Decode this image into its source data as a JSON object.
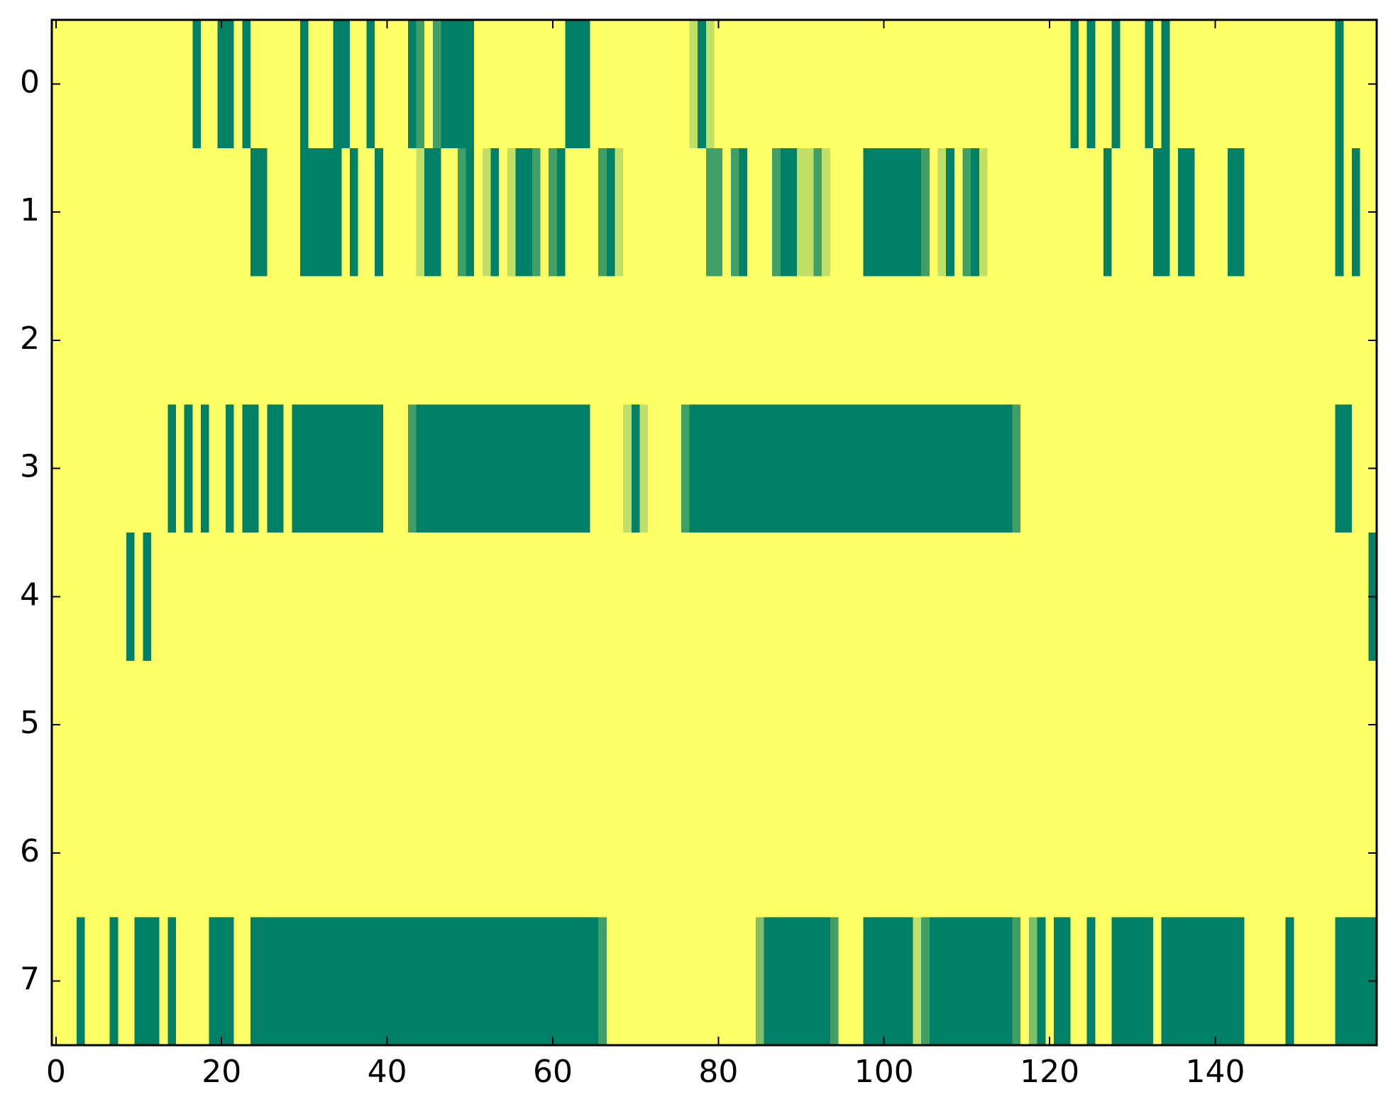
{
  "chart_data": {
    "type": "heatmap",
    "colormap": "summer",
    "xlim": [
      -0.5,
      159.5
    ],
    "ylim": [
      7.5,
      -0.5
    ],
    "xticks": [
      0,
      20,
      40,
      60,
      80,
      100,
      120,
      140
    ],
    "yticks": [
      0,
      1,
      2,
      3,
      4,
      5,
      6,
      7
    ],
    "values": [
      [
        1,
        1,
        1,
        1,
        1,
        1,
        1,
        1,
        1,
        1,
        1,
        1,
        1,
        1,
        1,
        1,
        1,
        0,
        1,
        1,
        0,
        0,
        1,
        0,
        1,
        1,
        1,
        1,
        1,
        1,
        0,
        1,
        1,
        1,
        0,
        0,
        1,
        1,
        0,
        1,
        1,
        1,
        1,
        0,
        0.25,
        1,
        0.25,
        0,
        0,
        0,
        0,
        1,
        1,
        1,
        1,
        1,
        1,
        1,
        1,
        1,
        1,
        1,
        0,
        0,
        0,
        1,
        1,
        1,
        1,
        1,
        1,
        1,
        1,
        1,
        1,
        1,
        1,
        0.75,
        0,
        0.75,
        1,
        1,
        1,
        1,
        1,
        1,
        1,
        1,
        1,
        1,
        1,
        1,
        1,
        1,
        1,
        1,
        1,
        1,
        1,
        1,
        1,
        1,
        1,
        1,
        1,
        1,
        1,
        1,
        1,
        1,
        1,
        1,
        1,
        1,
        1,
        1,
        1,
        1,
        1,
        1,
        1,
        1,
        1,
        0,
        1,
        0,
        1,
        1,
        0,
        1,
        1,
        1,
        0,
        1,
        0,
        1,
        1,
        1,
        1,
        1,
        1,
        1,
        1,
        1,
        1,
        1,
        1,
        1,
        1,
        1,
        1,
        1,
        1,
        1,
        1,
        0,
        1,
        1,
        1,
        1
      ],
      [
        1,
        1,
        1,
        1,
        1,
        1,
        1,
        1,
        1,
        1,
        1,
        1,
        1,
        1,
        1,
        1,
        1,
        1,
        1,
        1,
        1,
        1,
        1,
        1,
        0,
        0,
        1,
        1,
        1,
        1,
        0,
        0,
        0,
        0,
        0,
        1,
        0,
        1,
        1,
        0,
        1,
        1,
        1,
        1,
        0.75,
        0,
        0,
        1,
        1,
        0.25,
        0,
        1,
        0.75,
        0,
        1,
        0.75,
        0,
        0,
        0.25,
        1,
        0.25,
        0,
        1,
        1,
        1,
        1,
        0.25,
        0,
        0.75,
        1,
        1,
        1,
        1,
        1,
        1,
        1,
        1,
        1,
        1,
        0.25,
        0.25,
        1,
        0.25,
        0,
        1,
        1,
        1,
        0.25,
        0,
        0,
        0.75,
        0.75,
        0.25,
        0.75,
        1,
        1,
        1,
        1,
        0,
        0,
        0,
        0,
        0,
        0,
        0,
        0.25,
        1,
        0.75,
        0,
        1,
        0.25,
        0,
        0.75,
        1,
        1,
        1,
        1,
        1,
        1,
        1,
        1,
        1,
        1,
        1,
        1,
        1,
        1,
        0,
        1,
        1,
        1,
        1,
        1,
        0,
        0,
        1,
        0,
        0,
        1,
        1,
        1,
        1,
        0,
        0,
        1,
        1,
        1,
        1,
        1,
        1,
        1,
        1,
        1,
        1,
        1,
        0,
        1,
        0,
        1,
        1
      ],
      [
        1,
        1,
        1,
        1,
        1,
        1,
        1,
        1,
        1,
        1,
        1,
        1,
        1,
        1,
        1,
        1,
        1,
        1,
        1,
        1,
        1,
        1,
        1,
        1,
        1,
        1,
        1,
        1,
        1,
        1,
        1,
        1,
        1,
        1,
        1,
        1,
        1,
        1,
        1,
        1,
        1,
        1,
        1,
        1,
        1,
        1,
        1,
        1,
        1,
        1,
        1,
        1,
        1,
        1,
        1,
        1,
        1,
        1,
        1,
        1,
        1,
        1,
        1,
        1,
        1,
        1,
        1,
        1,
        1,
        1,
        1,
        1,
        1,
        1,
        1,
        1,
        1,
        1,
        1,
        1,
        1,
        1,
        1,
        1,
        1,
        1,
        1,
        1,
        1,
        1,
        1,
        1,
        1,
        1,
        1,
        1,
        1,
        1,
        1,
        1,
        1,
        1,
        1,
        1,
        1,
        1,
        1,
        1,
        1,
        1,
        1,
        1,
        1,
        1,
        1,
        1,
        1,
        1,
        1,
        1,
        1,
        1,
        1,
        1,
        1,
        1,
        1,
        1,
        1,
        1,
        1,
        1,
        1,
        1,
        1,
        1,
        1,
        1,
        1,
        1,
        1,
        1,
        1,
        1,
        1,
        1,
        1,
        1,
        1,
        1,
        1,
        1,
        1,
        1,
        1,
        1,
        1,
        1,
        1,
        1
      ],
      [
        1,
        1,
        1,
        1,
        1,
        1,
        1,
        1,
        1,
        1,
        1,
        1,
        1,
        1,
        0,
        1,
        0,
        1,
        0,
        1,
        1,
        0,
        1,
        0,
        0,
        1,
        0,
        0,
        1,
        0,
        0,
        0,
        0,
        0,
        0,
        0,
        0,
        0,
        0,
        0,
        1,
        1,
        1,
        0.25,
        0,
        0,
        0,
        0,
        0,
        0,
        0,
        0,
        0,
        0,
        0,
        0,
        0,
        0,
        0,
        0,
        0,
        0,
        0,
        0,
        0,
        1,
        1,
        1,
        1,
        0.75,
        0,
        0.75,
        1,
        1,
        1,
        1,
        0.25,
        0,
        0,
        0,
        0,
        0,
        0,
        0,
        0,
        0,
        0,
        0,
        0,
        0,
        0,
        0,
        0,
        0,
        0,
        0,
        0,
        0,
        0,
        0,
        0,
        0,
        0,
        0,
        0,
        0,
        0,
        0,
        0,
        0,
        0,
        0,
        0,
        0,
        0,
        0,
        0.25,
        1,
        1,
        1,
        1,
        1,
        1,
        1,
        1,
        1,
        1,
        1,
        1,
        1,
        1,
        1,
        1,
        1,
        1,
        1,
        1,
        1,
        1,
        1,
        1,
        1,
        1,
        1,
        1,
        1,
        1,
        1,
        1,
        1,
        1,
        1,
        1,
        1,
        1,
        0,
        0,
        1,
        1,
        1
      ],
      [
        1,
        1,
        1,
        1,
        1,
        1,
        1,
        1,
        1,
        0,
        1,
        0,
        1,
        1,
        1,
        1,
        1,
        1,
        1,
        1,
        1,
        1,
        1,
        1,
        1,
        1,
        1,
        1,
        1,
        1,
        1,
        1,
        1,
        1,
        1,
        1,
        1,
        1,
        1,
        1,
        1,
        1,
        1,
        1,
        1,
        1,
        1,
        1,
        1,
        1,
        1,
        1,
        1,
        1,
        1,
        1,
        1,
        1,
        1,
        1,
        1,
        1,
        1,
        1,
        1,
        1,
        1,
        1,
        1,
        1,
        1,
        1,
        1,
        1,
        1,
        1,
        1,
        1,
        1,
        1,
        1,
        1,
        1,
        1,
        1,
        1,
        1,
        1,
        1,
        1,
        1,
        1,
        1,
        1,
        1,
        1,
        1,
        1,
        1,
        1,
        1,
        1,
        1,
        1,
        1,
        1,
        1,
        1,
        1,
        1,
        1,
        1,
        1,
        1,
        1,
        1,
        1,
        1,
        1,
        1,
        1,
        1,
        1,
        1,
        1,
        1,
        1,
        1,
        1,
        1,
        1,
        1,
        1,
        1,
        1,
        1,
        1,
        1,
        1,
        1,
        1,
        1,
        1,
        1,
        1,
        1,
        1,
        1,
        1,
        1,
        1,
        1,
        1,
        1,
        1,
        1,
        1,
        1,
        1,
        0
      ],
      [
        1,
        1,
        1,
        1,
        1,
        1,
        1,
        1,
        1,
        1,
        1,
        1,
        1,
        1,
        1,
        1,
        1,
        1,
        1,
        1,
        1,
        1,
        1,
        1,
        1,
        1,
        1,
        1,
        1,
        1,
        1,
        1,
        1,
        1,
        1,
        1,
        1,
        1,
        1,
        1,
        1,
        1,
        1,
        1,
        1,
        1,
        1,
        1,
        1,
        1,
        1,
        1,
        1,
        1,
        1,
        1,
        1,
        1,
        1,
        1,
        1,
        1,
        1,
        1,
        1,
        1,
        1,
        1,
        1,
        1,
        1,
        1,
        1,
        1,
        1,
        1,
        1,
        1,
        1,
        1,
        1,
        1,
        1,
        1,
        1,
        1,
        1,
        1,
        1,
        1,
        1,
        1,
        1,
        1,
        1,
        1,
        1,
        1,
        1,
        1,
        1,
        1,
        1,
        1,
        1,
        1,
        1,
        1,
        1,
        1,
        1,
        1,
        1,
        1,
        1,
        1,
        1,
        1,
        1,
        1,
        1,
        1,
        1,
        1,
        1,
        1,
        1,
        1,
        1,
        1,
        1,
        1,
        1,
        1,
        1,
        1,
        1,
        1,
        1,
        1,
        1,
        1,
        1,
        1,
        1,
        1,
        1,
        1,
        1,
        1,
        1,
        1,
        1,
        1,
        1,
        1,
        1,
        1,
        1,
        1
      ],
      [
        1,
        1,
        1,
        1,
        1,
        1,
        1,
        1,
        1,
        1,
        1,
        1,
        1,
        1,
        1,
        1,
        1,
        1,
        1,
        1,
        1,
        1,
        1,
        1,
        1,
        1,
        1,
        1,
        1,
        1,
        1,
        1,
        1,
        1,
        1,
        1,
        1,
        1,
        1,
        1,
        1,
        1,
        1,
        1,
        1,
        1,
        1,
        1,
        1,
        1,
        1,
        1,
        1,
        1,
        1,
        1,
        1,
        1,
        1,
        1,
        1,
        1,
        1,
        1,
        1,
        1,
        1,
        1,
        1,
        1,
        1,
        1,
        1,
        1,
        1,
        1,
        1,
        1,
        1,
        1,
        1,
        1,
        1,
        1,
        1,
        1,
        1,
        1,
        1,
        1,
        1,
        1,
        1,
        1,
        1,
        1,
        1,
        1,
        1,
        1,
        1,
        1,
        1,
        1,
        1,
        1,
        1,
        1,
        1,
        1,
        1,
        1,
        1,
        1,
        1,
        1,
        1,
        1,
        1,
        1,
        1,
        1,
        1,
        1,
        1,
        1,
        1,
        1,
        1,
        1,
        1,
        1,
        1,
        1,
        1,
        1,
        1,
        1,
        1,
        1,
        1,
        1,
        1,
        1,
        1,
        1,
        1,
        1,
        1,
        1,
        1,
        1,
        1,
        1,
        1,
        1,
        1,
        1,
        1,
        1
      ],
      [
        1,
        1,
        1,
        0,
        1,
        1,
        1,
        0,
        1,
        1,
        0,
        0,
        0,
        1,
        0,
        1,
        1,
        1,
        1,
        0,
        0,
        0,
        1,
        1,
        0,
        0,
        0,
        0,
        0,
        0,
        0,
        0,
        0,
        0,
        0,
        0,
        0,
        0,
        0,
        0,
        0,
        0,
        0,
        0,
        0,
        0,
        0,
        0,
        0,
        0,
        0,
        0,
        0,
        0,
        0,
        0,
        0,
        0,
        0,
        0,
        0,
        0,
        0,
        0,
        0,
        0,
        0.25,
        1,
        1,
        1,
        1,
        1,
        1,
        1,
        1,
        1,
        1,
        1,
        1,
        1,
        1,
        1,
        1,
        1,
        1,
        0.5,
        0,
        0,
        0,
        0,
        0,
        0,
        0,
        0,
        0.25,
        1,
        1,
        1,
        0,
        0,
        0,
        0,
        0,
        0,
        0.75,
        0.25,
        0,
        0,
        0,
        0,
        0,
        0,
        0,
        0,
        0,
        0,
        0.25,
        1,
        0.5,
        0,
        1,
        0,
        0,
        1,
        1,
        0,
        1,
        1,
        0,
        0,
        0,
        0,
        0,
        1,
        0,
        0,
        0,
        0,
        0,
        0,
        0,
        0,
        0,
        0,
        1,
        1,
        1,
        1,
        1,
        0,
        1,
        1,
        1,
        1,
        1,
        0,
        0,
        0,
        0,
        0
      ]
    ]
  }
}
